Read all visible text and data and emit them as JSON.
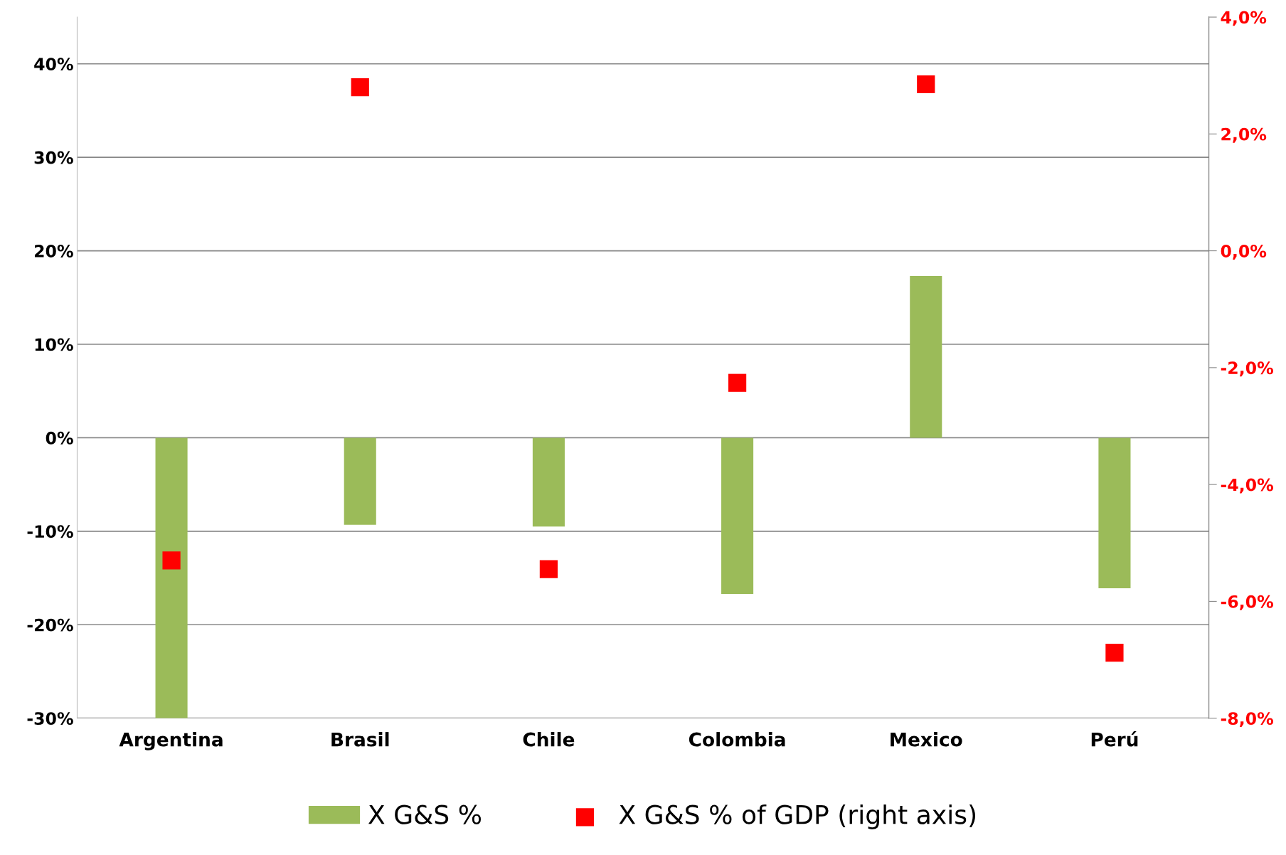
{
  "chart_data": {
    "type": "bar",
    "categories": [
      "Argentina",
      "Brasil",
      "Chile",
      "Colombia",
      "Mexico",
      "Perú"
    ],
    "series": [
      {
        "name": "X G&S %",
        "color": "#9bbb59",
        "values": [
          -30,
          -9.3,
          -9.5,
          -16.7,
          17.3,
          -16.1
        ]
      },
      {
        "name": "X G&S % of GDP (right axis)",
        "color": "#ff0000",
        "type": "scatter",
        "axis": "y2",
        "marker": "square",
        "values": [
          -5.3,
          2.8,
          -5.45,
          -2.26,
          2.85,
          -6.88
        ]
      }
    ],
    "ylim": [
      -30,
      45
    ],
    "yticks": [
      {
        "value": -30,
        "label": "-30%"
      },
      {
        "value": -20,
        "label": "-20%"
      },
      {
        "value": -10,
        "label": "-10%"
      },
      {
        "value": 0,
        "label": "0%"
      },
      {
        "value": 10,
        "label": "10%"
      },
      {
        "value": 20,
        "label": "20%"
      },
      {
        "value": 30,
        "label": "30%"
      },
      {
        "value": 40,
        "label": "40%"
      }
    ],
    "y2lim": [
      -8,
      4
    ],
    "y2ticks": [
      {
        "value": -8,
        "label": "-8,0%"
      },
      {
        "value": -6,
        "label": "-6,0%"
      },
      {
        "value": -4,
        "label": "-4,0%"
      },
      {
        "value": -2,
        "label": "-2,0%"
      },
      {
        "value": 0,
        "label": "0,0%"
      },
      {
        "value": 2,
        "label": "2,0%"
      },
      {
        "value": 4,
        "label": "4,0%"
      }
    ],
    "grid": "y",
    "legend": "bottom"
  }
}
